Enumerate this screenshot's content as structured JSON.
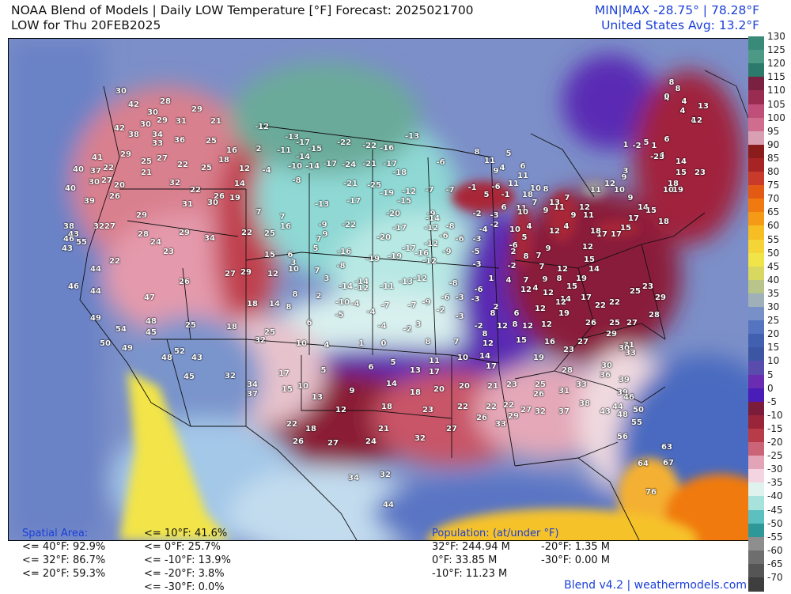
{
  "header": {
    "title": "NOAA Blend of Models | Daily LOW Temperature [°F] Forecast: 2025021700",
    "subtitle": "LOW for Thu 20FEB2025",
    "minmax": "MIN|MAX -28.75°  | 78.28°F",
    "us_avg": "United States Avg: 13.2°F"
  },
  "colorbar": {
    "labels": [
      "130",
      "125",
      "120",
      "115",
      "110",
      "105",
      "100",
      "95",
      "90",
      "85",
      "80",
      "75",
      "70",
      "65",
      "60",
      "55",
      "50",
      "45",
      "40",
      "35",
      "30",
      "25",
      "20",
      "15",
      "10",
      "5",
      "0",
      "-5",
      "-10",
      "-15",
      "-20",
      "-25",
      "-30",
      "-35",
      "-40",
      "-45",
      "-50",
      "-55",
      "-60",
      "-65",
      "-70"
    ],
    "colors": [
      "#3a8a7a",
      "#4c9a86",
      "#2c7a6c",
      "#7a2040",
      "#9a2c52",
      "#bf4f78",
      "#d06c8e",
      "#d9a0b4",
      "#8a1c1c",
      "#a82424",
      "#c83a2a",
      "#e25a14",
      "#f07a10",
      "#f49a16",
      "#f6be22",
      "#f4d436",
      "#f0e448",
      "#d8d860",
      "#b8c48a",
      "#a0b0b8",
      "#7890c8",
      "#5474c0",
      "#4260b0",
      "#3c56a4",
      "#5a4cac",
      "#6a2cb0",
      "#4a1cb8",
      "#7a1c3a",
      "#9a2438",
      "#b83c48",
      "#cc6478",
      "#e3a4b8",
      "#f4d4e0",
      "#dff2ee",
      "#a8e2dc",
      "#5cc0c0",
      "#2e9898",
      "#8e8e8e",
      "#6e6e6e",
      "#555555",
      "#3e3e3e"
    ]
  },
  "stats": {
    "spatial_title": "Spatial Area:",
    "spatial_left": [
      "<= 40°F: 92.9%",
      "<= 32°F: 86.7%",
      "<= 20°F: 59.3%"
    ],
    "spatial_right": [
      "<= 10°F: 41.6%",
      "<= 0°F: 25.7%",
      "<= -10°F: 13.9%",
      "<= -20°F: 3.8%",
      "<= -30°F: 0.0%"
    ],
    "pop_title": "Population: (at/under °F)",
    "pop_left": [
      "32°F: 244.94 M",
      "0°F: 33.85 M",
      "-10°F: 11.23 M"
    ],
    "pop_right": [
      "-20°F: 1.35 M",
      "-30°F: 0.00 M"
    ]
  },
  "footer": "Blend v4.2 | weathermodels.com",
  "points": [
    [
      "30",
      152,
      115
    ],
    [
      "42",
      168,
      132
    ],
    [
      "28",
      208,
      128
    ],
    [
      "29",
      248,
      138
    ],
    [
      "30",
      192,
      142
    ],
    [
      "29",
      204,
      152
    ],
    [
      "31",
      228,
      153
    ],
    [
      "21",
      272,
      153
    ],
    [
      "30",
      183,
      157
    ],
    [
      "42",
      150,
      162
    ],
    [
      "38",
      168,
      170
    ],
    [
      "34",
      198,
      170
    ],
    [
      "33",
      198,
      181
    ],
    [
      "36",
      226,
      177
    ],
    [
      "25",
      266,
      178
    ],
    [
      "16",
      292,
      190
    ],
    [
      "2",
      326,
      188
    ],
    [
      "-12",
      330,
      160
    ],
    [
      "-13",
      368,
      173
    ],
    [
      "-17",
      382,
      180
    ],
    [
      "-22",
      434,
      180
    ],
    [
      "-22",
      466,
      184
    ],
    [
      "-16",
      488,
      187
    ],
    [
      "-13",
      520,
      172
    ],
    [
      "-11",
      358,
      190
    ],
    [
      "-15",
      397,
      188
    ],
    [
      "-14",
      382,
      198
    ],
    [
      "41",
      122,
      199
    ],
    [
      "29",
      158,
      195
    ],
    [
      "27",
      204,
      200
    ],
    [
      "25",
      184,
      204
    ],
    [
      "22",
      230,
      208
    ],
    [
      "25",
      260,
      212
    ],
    [
      "18",
      282,
      202
    ],
    [
      "12",
      308,
      213
    ],
    [
      "-4",
      336,
      215
    ],
    [
      "-10",
      372,
      210
    ],
    [
      "-14",
      394,
      210
    ],
    [
      "-17",
      416,
      207
    ],
    [
      "-24",
      440,
      208
    ],
    [
      "-21",
      466,
      207
    ],
    [
      "-17",
      492,
      207
    ],
    [
      "-18",
      504,
      218
    ],
    [
      "-6",
      556,
      205
    ],
    [
      "8",
      602,
      192
    ],
    [
      "5",
      642,
      194
    ],
    [
      "6",
      660,
      210
    ],
    [
      "40",
      98,
      214
    ],
    [
      "37",
      120,
      216
    ],
    [
      "22",
      136,
      212
    ],
    [
      "30",
      118,
      230
    ],
    [
      "27",
      134,
      228
    ],
    [
      "21",
      184,
      218
    ],
    [
      "32",
      220,
      231
    ],
    [
      "22",
      246,
      240
    ],
    [
      "26",
      276,
      248
    ],
    [
      "19",
      296,
      250
    ],
    [
      "14",
      302,
      232
    ],
    [
      "-8",
      374,
      228
    ],
    [
      "-21",
      442,
      232
    ],
    [
      "-25",
      472,
      234
    ],
    [
      "-19",
      488,
      244
    ],
    [
      "-12",
      516,
      242
    ],
    [
      "-7",
      542,
      240
    ],
    [
      "-7",
      568,
      240
    ],
    [
      "-1",
      596,
      237
    ],
    [
      "11",
      618,
      203
    ],
    [
      "9",
      626,
      216
    ],
    [
      "4",
      634,
      212
    ],
    [
      "11",
      660,
      222
    ],
    [
      "40",
      88,
      238
    ],
    [
      "20",
      150,
      234
    ],
    [
      "26",
      144,
      248
    ],
    [
      "39",
      112,
      254
    ],
    [
      "31",
      236,
      258
    ],
    [
      "30",
      268,
      256
    ],
    [
      "7",
      326,
      268
    ],
    [
      "-13",
      406,
      258
    ],
    [
      "-17",
      446,
      254
    ],
    [
      "-15",
      510,
      254
    ],
    [
      "-20",
      496,
      270
    ],
    [
      "-9",
      544,
      270
    ],
    [
      "-2",
      602,
      270
    ],
    [
      "5",
      614,
      246
    ],
    [
      "-6",
      626,
      236
    ],
    [
      "-1",
      638,
      246
    ],
    [
      "11",
      648,
      232
    ],
    [
      "18",
      666,
      246
    ],
    [
      "10",
      676,
      238
    ],
    [
      "8",
      689,
      239
    ],
    [
      "11",
      658,
      263
    ],
    [
      "7",
      675,
      256
    ],
    [
      "10",
      660,
      268
    ],
    [
      "29",
      178,
      272
    ],
    [
      "27",
      138,
      286
    ],
    [
      "32",
      124,
      286
    ],
    [
      "38",
      86,
      286
    ],
    [
      "22",
      311,
      294
    ],
    [
      "25",
      340,
      295
    ],
    [
      "7",
      356,
      274
    ],
    [
      "-9",
      407,
      284
    ],
    [
      "-22",
      440,
      284
    ],
    [
      "-20",
      484,
      300
    ],
    [
      "-17",
      504,
      288
    ],
    [
      "-14",
      546,
      276
    ],
    [
      "-12",
      544,
      288
    ],
    [
      "-8",
      568,
      286
    ],
    [
      "-6",
      560,
      298
    ],
    [
      "-4",
      610,
      290
    ],
    [
      "-3",
      602,
      302
    ],
    [
      "6",
      636,
      262
    ],
    [
      "-3",
      624,
      272
    ],
    [
      "-2",
      624,
      284
    ],
    [
      "10",
      650,
      290
    ],
    [
      "4",
      668,
      286
    ],
    [
      "9",
      689,
      266
    ],
    [
      "11",
      706,
      262
    ],
    [
      "28",
      180,
      296
    ],
    [
      "24",
      196,
      306
    ],
    [
      "29",
      232,
      294
    ],
    [
      "34",
      264,
      301
    ],
    [
      "43",
      92,
      296
    ],
    [
      "46",
      86,
      302
    ],
    [
      "55",
      102,
      306
    ],
    [
      "43",
      84,
      314
    ],
    [
      "16",
      360,
      286
    ],
    [
      "9",
      410,
      296
    ],
    [
      "7",
      402,
      302
    ],
    [
      "-12",
      544,
      308
    ],
    [
      "-16",
      434,
      318
    ],
    [
      "-19",
      470,
      327
    ],
    [
      "-19",
      498,
      324
    ],
    [
      "-17",
      516,
      314
    ],
    [
      "-16",
      532,
      320
    ],
    [
      "-12",
      542,
      330
    ],
    [
      "-9",
      564,
      318
    ],
    [
      "-5",
      600,
      318
    ],
    [
      "-3",
      602,
      334
    ],
    [
      "-6",
      580,
      302
    ],
    [
      "5",
      662,
      300
    ],
    [
      "-6",
      648,
      310
    ],
    [
      "2",
      648,
      318
    ],
    [
      "8",
      664,
      324
    ],
    [
      "7",
      680,
      323
    ],
    [
      "9",
      692,
      314
    ],
    [
      "12",
      700,
      292
    ],
    [
      "4",
      715,
      286
    ],
    [
      "23",
      212,
      318
    ],
    [
      "22",
      144,
      330
    ],
    [
      "15",
      340,
      322
    ],
    [
      "6",
      366,
      322
    ],
    [
      "5",
      398,
      314
    ],
    [
      "3",
      370,
      332
    ],
    [
      "7",
      400,
      342
    ],
    [
      "3",
      412,
      352
    ],
    [
      "-8",
      430,
      336
    ],
    [
      "-14",
      456,
      356
    ],
    [
      "-12",
      456,
      364
    ],
    [
      "-11",
      488,
      362
    ],
    [
      "-13",
      512,
      356
    ],
    [
      "-12",
      530,
      352
    ],
    [
      "-8",
      572,
      358
    ],
    [
      "-6",
      562,
      376
    ],
    [
      "-3",
      580,
      376
    ],
    [
      "-2",
      646,
      336
    ],
    [
      "1",
      620,
      352
    ],
    [
      "4",
      642,
      354
    ],
    [
      "7",
      664,
      354
    ],
    [
      "7",
      684,
      337
    ],
    [
      "9",
      688,
      353
    ],
    [
      "12",
      710,
      340
    ],
    [
      "8",
      706,
      352
    ],
    [
      "44",
      120,
      340
    ],
    [
      "27",
      290,
      346
    ],
    [
      "29",
      310,
      344
    ],
    [
      "12",
      344,
      346
    ],
    [
      "10",
      370,
      340
    ],
    [
      "26",
      232,
      356
    ],
    [
      "46",
      92,
      362
    ],
    [
      "44",
      120,
      368
    ],
    [
      "8",
      372,
      372
    ],
    [
      "2",
      402,
      374
    ],
    [
      "-14",
      436,
      362
    ],
    [
      "-10",
      432,
      382
    ],
    [
      "-4",
      448,
      384
    ],
    [
      "-7",
      486,
      386
    ],
    [
      "-7",
      520,
      386
    ],
    [
      "-9",
      538,
      382
    ],
    [
      "-3",
      600,
      378
    ],
    [
      "-6",
      604,
      366
    ],
    [
      "4",
      676,
      364
    ],
    [
      "12",
      664,
      366
    ],
    [
      "14",
      714,
      378
    ],
    [
      "12",
      708,
      382
    ],
    [
      "15",
      722,
      362
    ],
    [
      "12",
      692,
      370
    ],
    [
      "2",
      626,
      388
    ],
    [
      "47",
      188,
      376
    ],
    [
      "18",
      318,
      384
    ],
    [
      "14",
      346,
      384
    ],
    [
      "8",
      364,
      388
    ],
    [
      "-5",
      428,
      398
    ],
    [
      "-4",
      468,
      394
    ],
    [
      "-2",
      556,
      392
    ],
    [
      "-3",
      580,
      400
    ],
    [
      "-2",
      604,
      412
    ],
    [
      "8",
      622,
      396
    ],
    [
      "6",
      652,
      396
    ],
    [
      "12",
      682,
      390
    ],
    [
      "19",
      734,
      352
    ],
    [
      "14",
      750,
      340
    ],
    [
      "15",
      744,
      328
    ],
    [
      "12",
      742,
      312
    ],
    [
      "17",
      760,
      296
    ],
    [
      "17",
      778,
      296
    ],
    [
      "18",
      752,
      292
    ],
    [
      "15",
      790,
      288
    ],
    [
      "49",
      120,
      402
    ],
    [
      "48",
      190,
      406
    ],
    [
      "25",
      240,
      411
    ],
    [
      "18",
      292,
      413
    ],
    [
      "6",
      390,
      408
    ],
    [
      "-4",
      482,
      412
    ],
    [
      "-2",
      514,
      416
    ],
    [
      "3",
      528,
      410
    ],
    [
      "8",
      612,
      422
    ],
    [
      "12",
      634,
      412
    ],
    [
      "8",
      650,
      410
    ],
    [
      "12",
      666,
      412
    ],
    [
      "12",
      690,
      410
    ],
    [
      "19",
      712,
      396
    ],
    [
      "17",
      740,
      376
    ],
    [
      "22",
      758,
      386
    ],
    [
      "22",
      776,
      382
    ],
    [
      "25",
      802,
      368
    ],
    [
      "23",
      818,
      362
    ],
    [
      "29",
      834,
      376
    ],
    [
      "54",
      152,
      416
    ],
    [
      "45",
      190,
      420
    ],
    [
      "32",
      328,
      430
    ],
    [
      "25",
      340,
      420
    ],
    [
      "10",
      380,
      434
    ],
    [
      "4",
      412,
      436
    ],
    [
      "0",
      484,
      434
    ],
    [
      "8",
      540,
      432
    ],
    [
      "7",
      576,
      432
    ],
    [
      "12",
      616,
      434
    ],
    [
      "15",
      658,
      430
    ],
    [
      "16",
      694,
      432
    ],
    [
      "26",
      746,
      408
    ],
    [
      "25",
      776,
      408
    ],
    [
      "27",
      798,
      408
    ],
    [
      "28",
      826,
      398
    ],
    [
      "50",
      132,
      434
    ],
    [
      "49",
      160,
      440
    ],
    [
      "52",
      226,
      444
    ],
    [
      "48",
      210,
      452
    ],
    [
      "43",
      248,
      452
    ],
    [
      "1",
      456,
      434
    ],
    [
      "5",
      496,
      458
    ],
    [
      "11",
      548,
      456
    ],
    [
      "10",
      584,
      452
    ],
    [
      "14",
      612,
      450
    ],
    [
      "19",
      680,
      452
    ],
    [
      "23",
      718,
      442
    ],
    [
      "27",
      736,
      432
    ],
    [
      "29",
      772,
      422
    ],
    [
      "31",
      794,
      436
    ],
    [
      "30",
      788,
      440
    ],
    [
      "33",
      796,
      446
    ],
    [
      "45",
      238,
      476
    ],
    [
      "32",
      290,
      475
    ],
    [
      "5",
      408,
      468
    ],
    [
      "6",
      468,
      464
    ],
    [
      "13",
      524,
      468
    ],
    [
      "17",
      548,
      470
    ],
    [
      "17",
      620,
      463
    ],
    [
      "28",
      716,
      468
    ],
    [
      "30",
      766,
      462
    ],
    [
      "36",
      764,
      474
    ],
    [
      "39",
      788,
      480
    ],
    [
      "34",
      318,
      486
    ],
    [
      "37",
      318,
      498
    ],
    [
      "17",
      358,
      472
    ],
    [
      "15",
      362,
      492
    ],
    [
      "10",
      382,
      488
    ],
    [
      "13",
      400,
      502
    ],
    [
      "9",
      444,
      494
    ],
    [
      "14",
      494,
      485
    ],
    [
      "18",
      524,
      496
    ],
    [
      "20",
      554,
      492
    ],
    [
      "20",
      586,
      488
    ],
    [
      "21",
      622,
      488
    ],
    [
      "23",
      646,
      486
    ],
    [
      "26",
      680,
      498
    ],
    [
      "25",
      682,
      486
    ],
    [
      "31",
      712,
      494
    ],
    [
      "33",
      734,
      486
    ],
    [
      "39",
      786,
      496
    ],
    [
      "46",
      794,
      502
    ],
    [
      "12",
      430,
      518
    ],
    [
      "18",
      488,
      514
    ],
    [
      "23",
      540,
      518
    ],
    [
      "22",
      584,
      514
    ],
    [
      "22",
      620,
      514
    ],
    [
      "22",
      642,
      512
    ],
    [
      "26",
      608,
      528
    ],
    [
      "29",
      648,
      526
    ],
    [
      "27",
      664,
      518
    ],
    [
      "32",
      682,
      520
    ],
    [
      "37",
      712,
      520
    ],
    [
      "38",
      738,
      510
    ],
    [
      "43",
      764,
      520
    ],
    [
      "44",
      780,
      514
    ],
    [
      "48",
      786,
      524
    ],
    [
      "50",
      806,
      518
    ],
    [
      "55",
      804,
      534
    ],
    [
      "22",
      368,
      536
    ],
    [
      "18",
      392,
      542
    ],
    [
      "21",
      484,
      542
    ],
    [
      "27",
      570,
      542
    ],
    [
      "33",
      632,
      536
    ],
    [
      "56",
      786,
      552
    ],
    [
      "26",
      376,
      558
    ],
    [
      "27",
      420,
      560
    ],
    [
      "24",
      468,
      558
    ],
    [
      "32",
      530,
      554
    ],
    [
      "63",
      842,
      565
    ],
    [
      "64",
      812,
      586
    ],
    [
      "67",
      844,
      585
    ],
    [
      "34",
      446,
      604
    ],
    [
      "32",
      486,
      600
    ],
    [
      "76",
      822,
      622
    ],
    [
      "44",
      490,
      638
    ],
    [
      "8",
      848,
      104
    ],
    [
      "4",
      842,
      124
    ],
    [
      "8",
      856,
      112
    ],
    [
      "4",
      864,
      128
    ],
    [
      "13",
      888,
      134
    ],
    [
      "4",
      862,
      140
    ],
    [
      "4",
      876,
      152
    ],
    [
      "12",
      880,
      152
    ],
    [
      "0",
      842,
      122
    ],
    [
      "1",
      790,
      183
    ],
    [
      "-2",
      804,
      184
    ],
    [
      "5",
      816,
      180
    ],
    [
      "1",
      826,
      184
    ],
    [
      "6",
      842,
      176
    ],
    [
      "4",
      836,
      196
    ],
    [
      "-23",
      830,
      198
    ],
    [
      "14",
      860,
      204
    ],
    [
      "15",
      860,
      218
    ],
    [
      "23",
      884,
      218
    ],
    [
      "18",
      850,
      232
    ],
    [
      "10",
      844,
      240
    ],
    [
      "19",
      856,
      240
    ],
    [
      "3",
      790,
      216
    ],
    [
      "9",
      788,
      224
    ],
    [
      "12",
      770,
      232
    ],
    [
      "10",
      782,
      240
    ],
    [
      "9",
      796,
      250
    ],
    [
      "11",
      752,
      240
    ],
    [
      "12",
      738,
      262
    ],
    [
      "7",
      716,
      250
    ],
    [
      "13",
      700,
      256
    ],
    [
      "9",
      724,
      272
    ],
    [
      "11",
      743,
      272
    ],
    [
      "14",
      812,
      262
    ],
    [
      "17",
      800,
      276
    ],
    [
      "15",
      822,
      266
    ],
    [
      "18",
      838,
      280
    ]
  ]
}
